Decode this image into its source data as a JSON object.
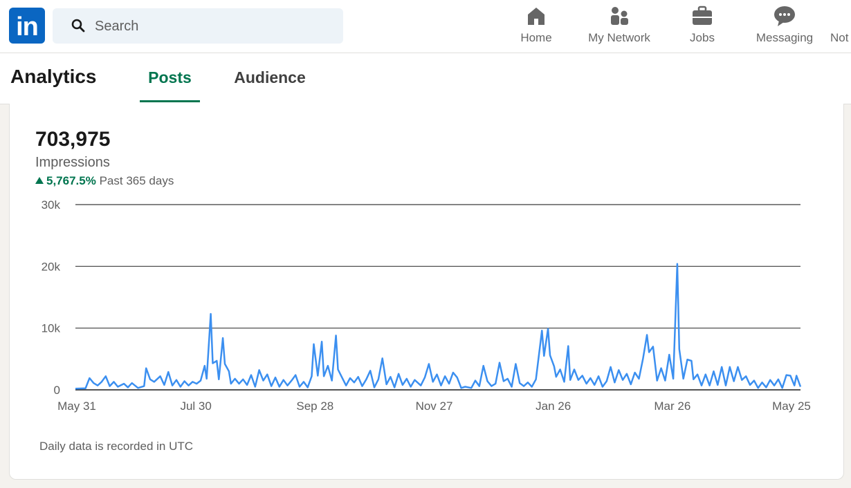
{
  "topnav": {
    "logo_text": "in",
    "search_placeholder": "Search",
    "items": [
      {
        "label": "Home",
        "icon": "home-icon"
      },
      {
        "label": "My Network",
        "icon": "network-icon"
      },
      {
        "label": "Jobs",
        "icon": "briefcase-icon"
      },
      {
        "label": "Messaging",
        "icon": "messaging-icon"
      },
      {
        "label": "Not",
        "icon": "bell-icon"
      }
    ]
  },
  "analytics": {
    "title": "Analytics",
    "tabs": [
      {
        "label": "Posts",
        "active": true
      },
      {
        "label": "Audience",
        "active": false
      }
    ]
  },
  "card": {
    "metric_value": "703,975",
    "metric_label": "Impressions",
    "change_value": "5,767.5%",
    "change_period": "Past 365 days",
    "footnote": "Daily data is recorded in UTC"
  },
  "colors": {
    "brand": "#0a66c2",
    "active_tab": "#01754f",
    "series_line": "#3b8ff0"
  },
  "chart_data": {
    "type": "line",
    "title": "",
    "xlabel": "",
    "ylabel": "",
    "ylim": [
      0,
      30000
    ],
    "y_ticks": [
      0,
      10000,
      20000,
      30000
    ],
    "y_tick_labels": [
      "0",
      "10k",
      "20k",
      "30k"
    ],
    "x_tick_labels": [
      "May 31",
      "Jul 30",
      "Sep 28",
      "Nov 27",
      "Jan 26",
      "Mar 26",
      "May 25"
    ],
    "x_range": [
      "2024-05-31",
      "2025-05-25"
    ],
    "grid": true,
    "legend": "none",
    "series": [
      {
        "points": [
          [
            "2024-05-31",
            200
          ],
          [
            "2024-06-05",
            250
          ],
          [
            "2024-06-07",
            1900
          ],
          [
            "2024-06-09",
            1100
          ],
          [
            "2024-06-11",
            700
          ],
          [
            "2024-06-13",
            1300
          ],
          [
            "2024-06-15",
            2200
          ],
          [
            "2024-06-17",
            600
          ],
          [
            "2024-06-19",
            1300
          ],
          [
            "2024-06-21",
            500
          ],
          [
            "2024-06-24",
            1000
          ],
          [
            "2024-06-26",
            400
          ],
          [
            "2024-06-28",
            1100
          ],
          [
            "2024-07-01",
            300
          ],
          [
            "2024-07-04",
            600
          ],
          [
            "2024-07-05",
            3500
          ],
          [
            "2024-07-07",
            1700
          ],
          [
            "2024-07-09",
            1300
          ],
          [
            "2024-07-12",
            2200
          ],
          [
            "2024-07-14",
            800
          ],
          [
            "2024-07-16",
            2900
          ],
          [
            "2024-07-18",
            700
          ],
          [
            "2024-07-20",
            1600
          ],
          [
            "2024-07-22",
            500
          ],
          [
            "2024-07-24",
            1400
          ],
          [
            "2024-07-26",
            700
          ],
          [
            "2024-07-28",
            1300
          ],
          [
            "2024-07-30",
            1000
          ],
          [
            "2024-08-01",
            1500
          ],
          [
            "2024-08-03",
            3900
          ],
          [
            "2024-08-04",
            1800
          ],
          [
            "2024-08-06",
            12300
          ],
          [
            "2024-08-07",
            4300
          ],
          [
            "2024-08-09",
            4700
          ],
          [
            "2024-08-10",
            1700
          ],
          [
            "2024-08-12",
            8400
          ],
          [
            "2024-08-13",
            4200
          ],
          [
            "2024-08-15",
            3000
          ],
          [
            "2024-08-16",
            1000
          ],
          [
            "2024-08-18",
            1800
          ],
          [
            "2024-08-20",
            1000
          ],
          [
            "2024-08-22",
            1700
          ],
          [
            "2024-08-24",
            800
          ],
          [
            "2024-08-26",
            2400
          ],
          [
            "2024-08-28",
            500
          ],
          [
            "2024-08-30",
            3200
          ],
          [
            "2024-09-01",
            1500
          ],
          [
            "2024-09-03",
            2500
          ],
          [
            "2024-09-05",
            600
          ],
          [
            "2024-09-07",
            2000
          ],
          [
            "2024-09-09",
            500
          ],
          [
            "2024-09-11",
            1600
          ],
          [
            "2024-09-13",
            700
          ],
          [
            "2024-09-15",
            1500
          ],
          [
            "2024-09-17",
            2400
          ],
          [
            "2024-09-19",
            500
          ],
          [
            "2024-09-21",
            1300
          ],
          [
            "2024-09-23",
            400
          ],
          [
            "2024-09-25",
            2200
          ],
          [
            "2024-09-26",
            7400
          ],
          [
            "2024-09-28",
            2300
          ],
          [
            "2024-09-30",
            7800
          ],
          [
            "2024-10-01",
            2200
          ],
          [
            "2024-10-03",
            3900
          ],
          [
            "2024-10-05",
            1500
          ],
          [
            "2024-10-07",
            8800
          ],
          [
            "2024-10-08",
            3300
          ],
          [
            "2024-10-10",
            2000
          ],
          [
            "2024-10-12",
            700
          ],
          [
            "2024-10-14",
            1900
          ],
          [
            "2024-10-16",
            1200
          ],
          [
            "2024-10-18",
            2100
          ],
          [
            "2024-10-20",
            600
          ],
          [
            "2024-10-22",
            1700
          ],
          [
            "2024-10-24",
            3100
          ],
          [
            "2024-10-26",
            400
          ],
          [
            "2024-10-28",
            1700
          ],
          [
            "2024-10-30",
            5100
          ],
          [
            "2024-11-01",
            900
          ],
          [
            "2024-11-03",
            2100
          ],
          [
            "2024-11-05",
            400
          ],
          [
            "2024-11-07",
            2600
          ],
          [
            "2024-11-09",
            800
          ],
          [
            "2024-11-11",
            1800
          ],
          [
            "2024-11-13",
            500
          ],
          [
            "2024-11-15",
            1600
          ],
          [
            "2024-11-18",
            700
          ],
          [
            "2024-11-20",
            2000
          ],
          [
            "2024-11-22",
            4200
          ],
          [
            "2024-11-24",
            1300
          ],
          [
            "2024-11-26",
            2500
          ],
          [
            "2024-11-28",
            700
          ],
          [
            "2024-11-30",
            2200
          ],
          [
            "2024-12-02",
            1000
          ],
          [
            "2024-12-04",
            2800
          ],
          [
            "2024-12-06",
            2000
          ],
          [
            "2024-12-08",
            300
          ],
          [
            "2024-12-10",
            500
          ],
          [
            "2024-12-13",
            300
          ],
          [
            "2024-12-15",
            1500
          ],
          [
            "2024-12-17",
            600
          ],
          [
            "2024-12-19",
            3900
          ],
          [
            "2024-12-21",
            1400
          ],
          [
            "2024-12-23",
            600
          ],
          [
            "2024-12-25",
            1000
          ],
          [
            "2024-12-27",
            4400
          ],
          [
            "2024-12-29",
            1400
          ],
          [
            "2024-12-31",
            1800
          ],
          [
            "2025-01-02",
            500
          ],
          [
            "2025-01-04",
            4200
          ],
          [
            "2025-01-06",
            1100
          ],
          [
            "2025-01-08",
            600
          ],
          [
            "2025-01-10",
            1200
          ],
          [
            "2025-01-12",
            500
          ],
          [
            "2025-01-14",
            1700
          ],
          [
            "2025-01-17",
            9600
          ],
          [
            "2025-01-18",
            5500
          ],
          [
            "2025-01-20",
            9900
          ],
          [
            "2025-01-21",
            5600
          ],
          [
            "2025-01-23",
            3800
          ],
          [
            "2025-01-24",
            2100
          ],
          [
            "2025-01-26",
            3300
          ],
          [
            "2025-01-28",
            1300
          ],
          [
            "2025-01-30",
            7100
          ],
          [
            "2025-01-31",
            1600
          ],
          [
            "2025-02-02",
            3300
          ],
          [
            "2025-02-04",
            1600
          ],
          [
            "2025-02-06",
            2300
          ],
          [
            "2025-02-08",
            1000
          ],
          [
            "2025-02-10",
            1900
          ],
          [
            "2025-02-12",
            800
          ],
          [
            "2025-02-14",
            2200
          ],
          [
            "2025-02-16",
            500
          ],
          [
            "2025-02-18",
            1400
          ],
          [
            "2025-02-20",
            3700
          ],
          [
            "2025-02-22",
            1200
          ],
          [
            "2025-02-24",
            3200
          ],
          [
            "2025-02-26",
            1600
          ],
          [
            "2025-02-28",
            2600
          ],
          [
            "2025-03-02",
            900
          ],
          [
            "2025-03-04",
            2800
          ],
          [
            "2025-03-06",
            1800
          ],
          [
            "2025-03-08",
            5000
          ],
          [
            "2025-03-10",
            8900
          ],
          [
            "2025-03-11",
            6100
          ],
          [
            "2025-03-13",
            7000
          ],
          [
            "2025-03-15",
            1500
          ],
          [
            "2025-03-17",
            3500
          ],
          [
            "2025-03-19",
            1500
          ],
          [
            "2025-03-21",
            5700
          ],
          [
            "2025-03-23",
            1800
          ],
          [
            "2025-03-25",
            20400
          ],
          [
            "2025-03-26",
            6600
          ],
          [
            "2025-03-28",
            1800
          ],
          [
            "2025-03-30",
            4900
          ],
          [
            "2025-04-01",
            4700
          ],
          [
            "2025-04-02",
            1700
          ],
          [
            "2025-04-04",
            2500
          ],
          [
            "2025-04-06",
            700
          ],
          [
            "2025-04-08",
            2500
          ],
          [
            "2025-04-10",
            700
          ],
          [
            "2025-04-12",
            3000
          ],
          [
            "2025-04-14",
            800
          ],
          [
            "2025-04-16",
            3700
          ],
          [
            "2025-04-18",
            700
          ],
          [
            "2025-04-20",
            3700
          ],
          [
            "2025-04-22",
            1400
          ],
          [
            "2025-04-24",
            3700
          ],
          [
            "2025-04-26",
            1600
          ],
          [
            "2025-04-28",
            2200
          ],
          [
            "2025-04-30",
            800
          ],
          [
            "2025-05-02",
            1500
          ],
          [
            "2025-05-04",
            300
          ],
          [
            "2025-05-06",
            1200
          ],
          [
            "2025-05-08",
            400
          ],
          [
            "2025-05-10",
            1600
          ],
          [
            "2025-05-12",
            700
          ],
          [
            "2025-05-14",
            1700
          ],
          [
            "2025-05-16",
            300
          ],
          [
            "2025-05-18",
            2400
          ],
          [
            "2025-05-20",
            2300
          ],
          [
            "2025-05-22",
            700
          ],
          [
            "2025-05-23",
            2300
          ],
          [
            "2025-05-25",
            500
          ]
        ]
      }
    ]
  }
}
